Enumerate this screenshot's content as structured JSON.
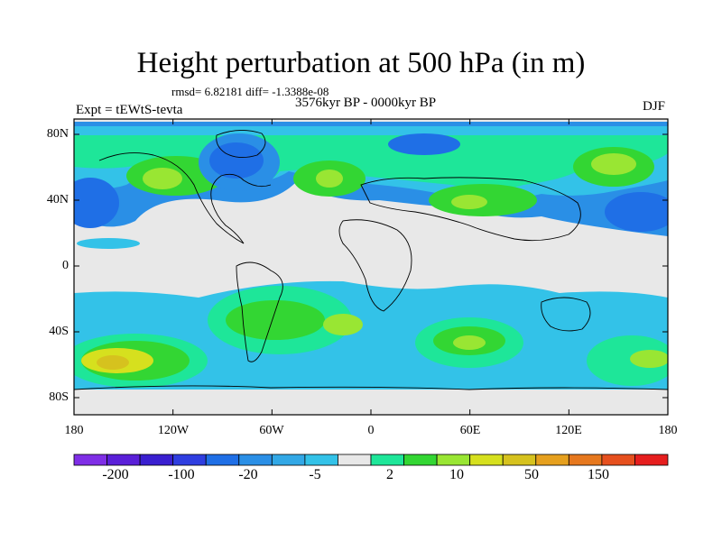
{
  "title": "Height perturbation at 500 hPa (in m)",
  "stats": "rmsd= 6.82181 diff= -1.3388e-08",
  "period": "3576kyr BP - 0000kyr BP",
  "experiment": "Expt = tEWtS-tevta",
  "season": "DJF",
  "lat_labels": [
    "80N",
    "40N",
    "0",
    "40S",
    "80S"
  ],
  "lon_labels": [
    "180",
    "120W",
    "60W",
    "0",
    "60E",
    "120E",
    "180"
  ],
  "colorbar": {
    "labels": [
      "-200",
      "-100",
      "-20",
      "-5",
      "2",
      "10",
      "50",
      "150"
    ],
    "colors": [
      "#7f2ee6",
      "#5a1fd8",
      "#3a1fd0",
      "#2f3ee0",
      "#1f6fe6",
      "#2a8fe6",
      "#32a8e6",
      "#33c2e8",
      "#e8e8e8",
      "#1ee699",
      "#33d633",
      "#99e633",
      "#d6e01e",
      "#d6c21e",
      "#e6a01e",
      "#e6781e",
      "#e6501e",
      "#e61e1e"
    ]
  }
}
